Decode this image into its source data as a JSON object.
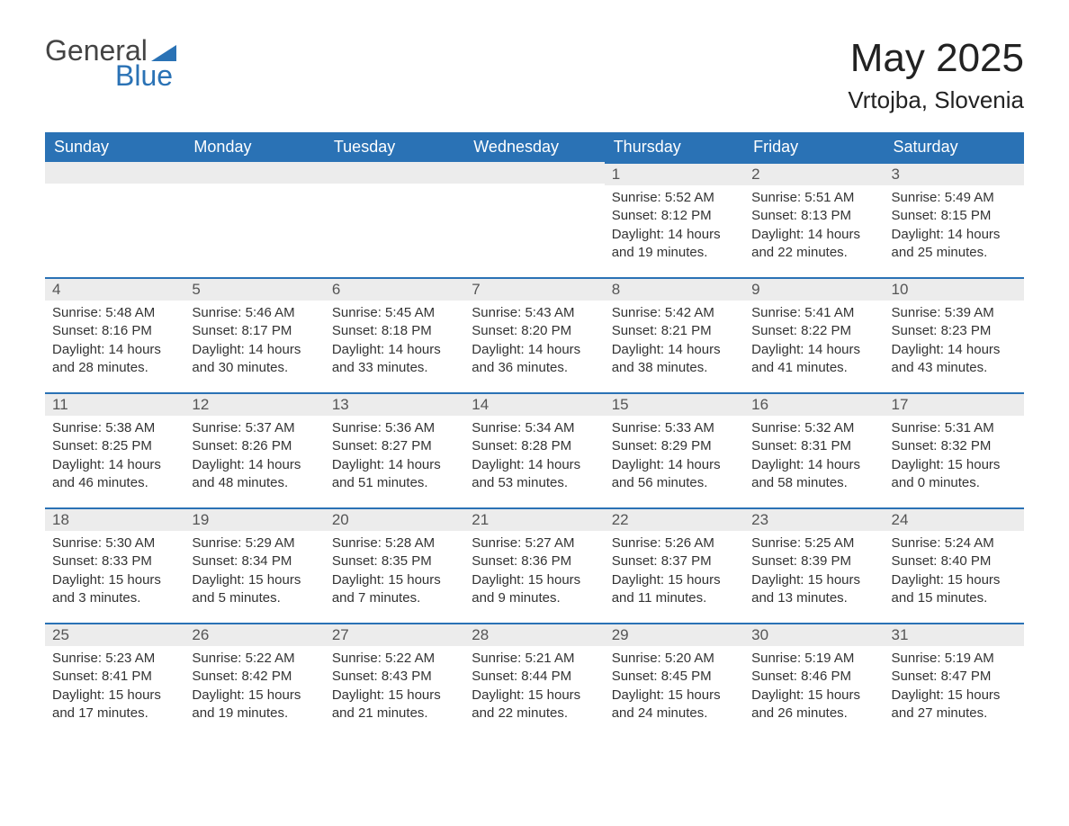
{
  "logo": {
    "top": "General",
    "bottom": "Blue"
  },
  "title": "May 2025",
  "location": "Vrtojba, Slovenia",
  "weekdays": [
    "Sunday",
    "Monday",
    "Tuesday",
    "Wednesday",
    "Thursday",
    "Friday",
    "Saturday"
  ],
  "colors": {
    "header_bg": "#2a72b5",
    "header_text": "#ffffff",
    "daynum_bg": "#ececec",
    "daynum_border": "#2a72b5",
    "body_text": "#333333"
  },
  "weeks": [
    [
      null,
      null,
      null,
      null,
      {
        "n": "1",
        "sr": "5:52 AM",
        "ss": "8:12 PM",
        "dl": "14 hours and 19 minutes."
      },
      {
        "n": "2",
        "sr": "5:51 AM",
        "ss": "8:13 PM",
        "dl": "14 hours and 22 minutes."
      },
      {
        "n": "3",
        "sr": "5:49 AM",
        "ss": "8:15 PM",
        "dl": "14 hours and 25 minutes."
      }
    ],
    [
      {
        "n": "4",
        "sr": "5:48 AM",
        "ss": "8:16 PM",
        "dl": "14 hours and 28 minutes."
      },
      {
        "n": "5",
        "sr": "5:46 AM",
        "ss": "8:17 PM",
        "dl": "14 hours and 30 minutes."
      },
      {
        "n": "6",
        "sr": "5:45 AM",
        "ss": "8:18 PM",
        "dl": "14 hours and 33 minutes."
      },
      {
        "n": "7",
        "sr": "5:43 AM",
        "ss": "8:20 PM",
        "dl": "14 hours and 36 minutes."
      },
      {
        "n": "8",
        "sr": "5:42 AM",
        "ss": "8:21 PM",
        "dl": "14 hours and 38 minutes."
      },
      {
        "n": "9",
        "sr": "5:41 AM",
        "ss": "8:22 PM",
        "dl": "14 hours and 41 minutes."
      },
      {
        "n": "10",
        "sr": "5:39 AM",
        "ss": "8:23 PM",
        "dl": "14 hours and 43 minutes."
      }
    ],
    [
      {
        "n": "11",
        "sr": "5:38 AM",
        "ss": "8:25 PM",
        "dl": "14 hours and 46 minutes."
      },
      {
        "n": "12",
        "sr": "5:37 AM",
        "ss": "8:26 PM",
        "dl": "14 hours and 48 minutes."
      },
      {
        "n": "13",
        "sr": "5:36 AM",
        "ss": "8:27 PM",
        "dl": "14 hours and 51 minutes."
      },
      {
        "n": "14",
        "sr": "5:34 AM",
        "ss": "8:28 PM",
        "dl": "14 hours and 53 minutes."
      },
      {
        "n": "15",
        "sr": "5:33 AM",
        "ss": "8:29 PM",
        "dl": "14 hours and 56 minutes."
      },
      {
        "n": "16",
        "sr": "5:32 AM",
        "ss": "8:31 PM",
        "dl": "14 hours and 58 minutes."
      },
      {
        "n": "17",
        "sr": "5:31 AM",
        "ss": "8:32 PM",
        "dl": "15 hours and 0 minutes."
      }
    ],
    [
      {
        "n": "18",
        "sr": "5:30 AM",
        "ss": "8:33 PM",
        "dl": "15 hours and 3 minutes."
      },
      {
        "n": "19",
        "sr": "5:29 AM",
        "ss": "8:34 PM",
        "dl": "15 hours and 5 minutes."
      },
      {
        "n": "20",
        "sr": "5:28 AM",
        "ss": "8:35 PM",
        "dl": "15 hours and 7 minutes."
      },
      {
        "n": "21",
        "sr": "5:27 AM",
        "ss": "8:36 PM",
        "dl": "15 hours and 9 minutes."
      },
      {
        "n": "22",
        "sr": "5:26 AM",
        "ss": "8:37 PM",
        "dl": "15 hours and 11 minutes."
      },
      {
        "n": "23",
        "sr": "5:25 AM",
        "ss": "8:39 PM",
        "dl": "15 hours and 13 minutes."
      },
      {
        "n": "24",
        "sr": "5:24 AM",
        "ss": "8:40 PM",
        "dl": "15 hours and 15 minutes."
      }
    ],
    [
      {
        "n": "25",
        "sr": "5:23 AM",
        "ss": "8:41 PM",
        "dl": "15 hours and 17 minutes."
      },
      {
        "n": "26",
        "sr": "5:22 AM",
        "ss": "8:42 PM",
        "dl": "15 hours and 19 minutes."
      },
      {
        "n": "27",
        "sr": "5:22 AM",
        "ss": "8:43 PM",
        "dl": "15 hours and 21 minutes."
      },
      {
        "n": "28",
        "sr": "5:21 AM",
        "ss": "8:44 PM",
        "dl": "15 hours and 22 minutes."
      },
      {
        "n": "29",
        "sr": "5:20 AM",
        "ss": "8:45 PM",
        "dl": "15 hours and 24 minutes."
      },
      {
        "n": "30",
        "sr": "5:19 AM",
        "ss": "8:46 PM",
        "dl": "15 hours and 26 minutes."
      },
      {
        "n": "31",
        "sr": "5:19 AM",
        "ss": "8:47 PM",
        "dl": "15 hours and 27 minutes."
      }
    ]
  ],
  "labels": {
    "sunrise": "Sunrise: ",
    "sunset": "Sunset: ",
    "daylight": "Daylight: "
  }
}
